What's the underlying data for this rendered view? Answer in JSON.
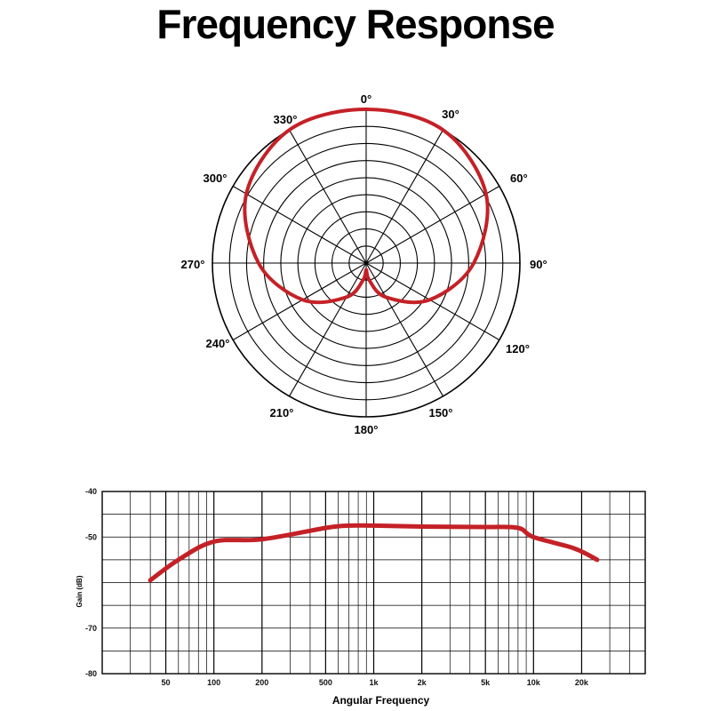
{
  "title": "Frequency Response",
  "colors": {
    "curve": "#c42127",
    "grid": "#000000"
  },
  "chart_data": [
    {
      "type": "polar",
      "angle_labels": [
        "0°",
        "30°",
        "60°",
        "90°",
        "120°",
        "150°",
        "180°",
        "210°",
        "240°",
        "270°",
        "300°",
        "330°"
      ],
      "rings": 9,
      "radial_range": [
        0,
        9
      ],
      "pattern": "cardioid",
      "series": [
        {
          "theta": [
            0,
            30,
            60,
            90,
            120,
            150,
            170,
            180,
            190,
            210,
            240,
            270,
            300,
            330
          ],
          "r": [
            9,
            9,
            8.1,
            6.3,
            4.3,
            2.3,
            1.0,
            0.4,
            1.0,
            2.3,
            4.3,
            6.3,
            8.1,
            9
          ]
        }
      ]
    },
    {
      "type": "line",
      "xlabel": "Angular Frequency",
      "ylabel": "Gain (dB)",
      "xscale": "log",
      "xlim": [
        20,
        50000
      ],
      "ylim": [
        -80,
        -40
      ],
      "x_ticks": [
        50,
        100,
        200,
        500,
        1000,
        2000,
        5000,
        10000,
        20000
      ],
      "x_tick_labels": [
        "50",
        "100",
        "200",
        "500",
        "1k",
        "2k",
        "5k",
        "10k",
        "20k"
      ],
      "y_ticks": [
        -40,
        -50,
        -60,
        -70,
        -80
      ],
      "y_tick_labels": [
        "-40",
        "-50",
        "",
        "-70",
        "-80"
      ],
      "series": [
        {
          "x": [
            40,
            60,
            100,
            200,
            500,
            700,
            1000,
            2000,
            5000,
            8000,
            10000,
            18000,
            25000
          ],
          "y": [
            -59.5,
            -55,
            -51,
            -50.5,
            -48,
            -47.5,
            -47.5,
            -47.7,
            -47.8,
            -48,
            -50,
            -52.5,
            -55
          ]
        }
      ]
    }
  ]
}
